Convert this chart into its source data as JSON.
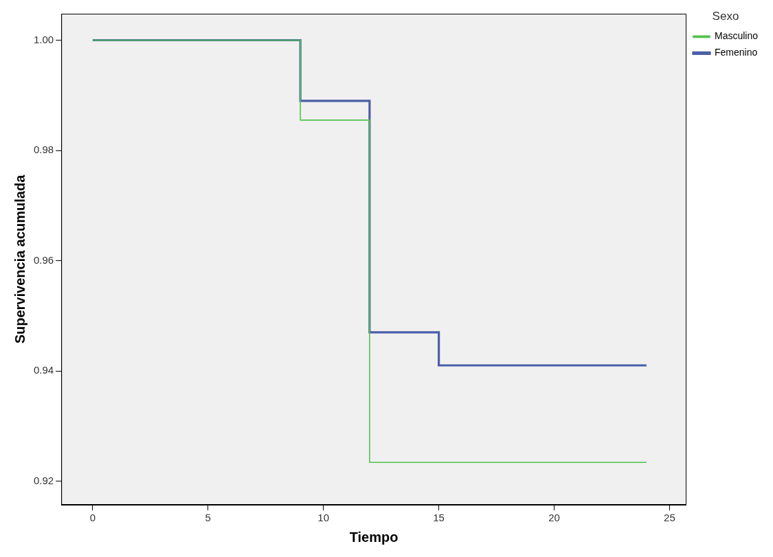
{
  "chart_data": {
    "type": "step",
    "xlabel": "Tiempo",
    "ylabel": "Supervivencia acumulada",
    "legend_title": "Sexo",
    "legend": "top right",
    "grid": false,
    "marker": "none",
    "line_style": "solid",
    "xlim": [
      -1.36,
      25.73
    ],
    "xticks": [
      0,
      5,
      10,
      15,
      20,
      25
    ],
    "ylim": [
      0.9157,
      1.0048
    ],
    "yticks": [
      {
        "value": 0.92,
        "label": "0.92"
      },
      {
        "value": 0.94,
        "label": "0.94"
      },
      {
        "value": 0.96,
        "label": "0.96"
      },
      {
        "value": 0.98,
        "label": "0.98"
      },
      {
        "value": 1.0,
        "label": "1.00"
      }
    ],
    "series": [
      {
        "name": "Femenino",
        "color": "#4a5ea8",
        "x": [
          0,
          9,
          12,
          15,
          24
        ],
        "values": [
          1.0,
          0.989,
          0.947,
          0.941,
          0.941
        ]
      },
      {
        "name": "Masculino",
        "color": "#52c24c",
        "x": [
          0,
          9,
          12,
          24
        ],
        "values": [
          1.0,
          0.9855,
          0.9234,
          0.9234
        ]
      }
    ]
  }
}
